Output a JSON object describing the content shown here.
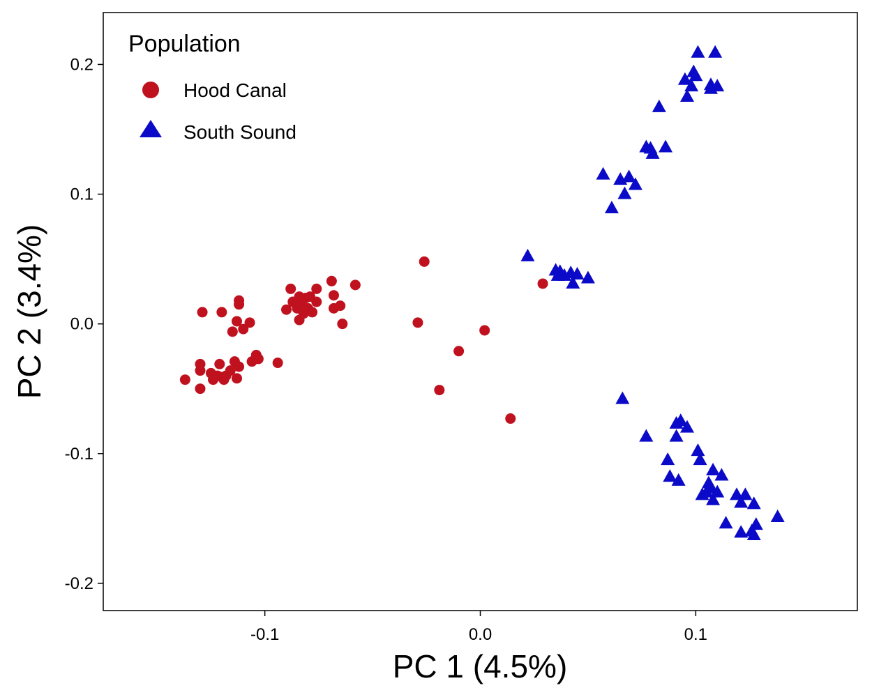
{
  "chart_data": {
    "type": "scatter",
    "xlabel": "PC 1 (4.5%)",
    "ylabel": "PC 2 (3.4%)",
    "xlim": [
      -0.175,
      0.175
    ],
    "ylim": [
      -0.221,
      0.24
    ],
    "x_ticks": [
      -0.1,
      0.0,
      0.1
    ],
    "y_ticks": [
      -0.2,
      -0.1,
      0.0,
      0.1,
      0.2
    ],
    "x_tick_labels": [
      "-0.1",
      "0.0",
      "0.1"
    ],
    "y_tick_labels": [
      "-0.2",
      "-0.1",
      "0.0",
      "0.1",
      "0.2"
    ],
    "grid": false,
    "legend": {
      "title": "Population",
      "placement": "top-left"
    },
    "series": [
      {
        "name": "Hood Canal",
        "marker": "circle",
        "color": "#c0111f",
        "points": [
          [
            -0.137,
            -0.043
          ],
          [
            -0.13,
            -0.05
          ],
          [
            -0.13,
            -0.036
          ],
          [
            -0.13,
            -0.031
          ],
          [
            -0.129,
            0.009
          ],
          [
            -0.125,
            -0.038
          ],
          [
            -0.124,
            -0.043
          ],
          [
            -0.122,
            -0.04
          ],
          [
            -0.121,
            -0.031
          ],
          [
            -0.12,
            0.009
          ],
          [
            -0.12,
            -0.041
          ],
          [
            -0.119,
            -0.043
          ],
          [
            -0.118,
            -0.04
          ],
          [
            -0.116,
            -0.036
          ],
          [
            -0.115,
            -0.006
          ],
          [
            -0.114,
            -0.029
          ],
          [
            -0.113,
            -0.042
          ],
          [
            -0.113,
            0.002
          ],
          [
            -0.112,
            0.015
          ],
          [
            -0.112,
            0.018
          ],
          [
            -0.112,
            -0.033
          ],
          [
            -0.11,
            -0.004
          ],
          [
            -0.107,
            0.001
          ],
          [
            -0.106,
            -0.029
          ],
          [
            -0.104,
            -0.024
          ],
          [
            -0.103,
            -0.027
          ],
          [
            -0.094,
            -0.03
          ],
          [
            -0.09,
            0.011
          ],
          [
            -0.088,
            0.027
          ],
          [
            -0.087,
            0.017
          ],
          [
            -0.085,
            0.012
          ],
          [
            -0.084,
            0.021
          ],
          [
            -0.084,
            0.003
          ],
          [
            -0.083,
            0.016
          ],
          [
            -0.082,
            0.008
          ],
          [
            -0.081,
            0.02
          ],
          [
            -0.08,
            0.012
          ],
          [
            -0.079,
            0.021
          ],
          [
            -0.078,
            0.009
          ],
          [
            -0.076,
            0.017
          ],
          [
            -0.076,
            0.027
          ],
          [
            -0.069,
            0.033
          ],
          [
            -0.068,
            0.022
          ],
          [
            -0.068,
            0.012
          ],
          [
            -0.065,
            0.014
          ],
          [
            -0.064,
            0.0
          ],
          [
            -0.058,
            0.03
          ],
          [
            -0.029,
            0.001
          ],
          [
            -0.026,
            0.048
          ],
          [
            -0.019,
            -0.051
          ],
          [
            -0.01,
            -0.021
          ],
          [
            0.002,
            -0.005
          ],
          [
            0.014,
            -0.073
          ],
          [
            0.029,
            0.031
          ]
        ]
      },
      {
        "name": "South Sound",
        "marker": "triangle",
        "color": "#0a0ac8",
        "points": [
          [
            0.022,
            0.052
          ],
          [
            0.035,
            0.041
          ],
          [
            0.036,
            0.037
          ],
          [
            0.037,
            0.04
          ],
          [
            0.039,
            0.037
          ],
          [
            0.042,
            0.039
          ],
          [
            0.043,
            0.031
          ],
          [
            0.045,
            0.038
          ],
          [
            0.05,
            0.035
          ],
          [
            0.057,
            0.115
          ],
          [
            0.061,
            0.089
          ],
          [
            0.065,
            0.111
          ],
          [
            0.067,
            0.1
          ],
          [
            0.069,
            0.113
          ],
          [
            0.072,
            0.107
          ],
          [
            0.077,
            0.136
          ],
          [
            0.079,
            0.135
          ],
          [
            0.08,
            0.131
          ],
          [
            0.083,
            0.167
          ],
          [
            0.086,
            0.136
          ],
          [
            0.095,
            0.188
          ],
          [
            0.096,
            0.175
          ],
          [
            0.098,
            0.183
          ],
          [
            0.099,
            0.194
          ],
          [
            0.1,
            0.191
          ],
          [
            0.101,
            0.209
          ],
          [
            0.107,
            0.181
          ],
          [
            0.107,
            0.184
          ],
          [
            0.109,
            0.209
          ],
          [
            0.11,
            0.183
          ],
          [
            0.066,
            -0.058
          ],
          [
            0.077,
            -0.087
          ],
          [
            0.087,
            -0.105
          ],
          [
            0.088,
            -0.118
          ],
          [
            0.091,
            -0.087
          ],
          [
            0.091,
            -0.077
          ],
          [
            0.092,
            -0.121
          ],
          [
            0.093,
            -0.075
          ],
          [
            0.096,
            -0.08
          ],
          [
            0.101,
            -0.098
          ],
          [
            0.102,
            -0.105
          ],
          [
            0.103,
            -0.132
          ],
          [
            0.105,
            -0.13
          ],
          [
            0.106,
            -0.123
          ],
          [
            0.107,
            -0.127
          ],
          [
            0.108,
            -0.136
          ],
          [
            0.108,
            -0.113
          ],
          [
            0.11,
            -0.13
          ],
          [
            0.112,
            -0.117
          ],
          [
            0.114,
            -0.154
          ],
          [
            0.119,
            -0.132
          ],
          [
            0.121,
            -0.161
          ],
          [
            0.121,
            -0.138
          ],
          [
            0.123,
            -0.132
          ],
          [
            0.126,
            -0.16
          ],
          [
            0.127,
            -0.163
          ],
          [
            0.127,
            -0.139
          ],
          [
            0.128,
            -0.155
          ],
          [
            0.138,
            -0.149
          ]
        ]
      }
    ]
  }
}
